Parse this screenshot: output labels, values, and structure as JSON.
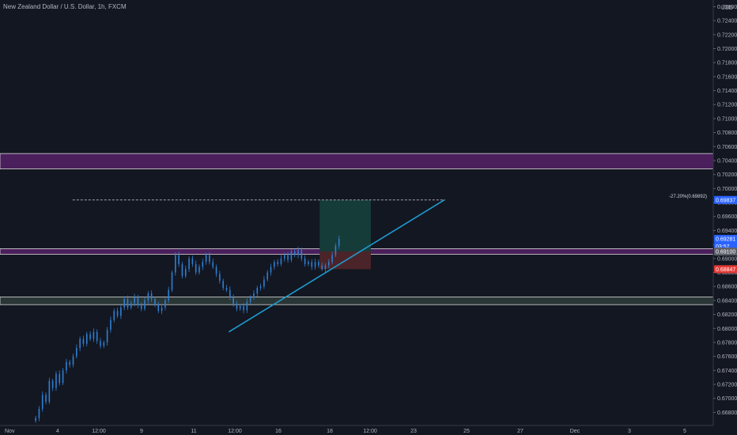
{
  "header": {
    "title": "New Zealand Dollar / U.S. Dollar, 1h, FXCM",
    "currency": "USD"
  },
  "colors": {
    "background": "#131722",
    "candle": "#2f7fd2",
    "trendline": "#1e9bcf",
    "zone_purple": "#4a1f5c",
    "zone_grey": "#2a3636",
    "target_zone": "#163c3a",
    "stop_zone": "#4b2429",
    "badge_blue": "#2962ff",
    "badge_red": "#e53935",
    "badge_grey": "#5d606b"
  },
  "chart_data": {
    "type": "candlestick",
    "ylim": [
      0.6668,
      0.7265
    ],
    "y_ticks": [
      "0.66800",
      "0.67000",
      "0.67200",
      "0.67400",
      "0.67600",
      "0.67800",
      "0.68000",
      "0.68200",
      "0.68400",
      "0.68600",
      "0.68800",
      "0.69000",
      "0.69200",
      "0.69400",
      "0.69600",
      "0.69800",
      "0.70000",
      "0.70200",
      "0.70400",
      "0.70600",
      "0.70800",
      "0.71000",
      "0.71200",
      "0.71400",
      "0.71600",
      "0.71800",
      "0.72000",
      "0.72200",
      "0.72400",
      "0.72600"
    ],
    "x_ticks": [
      "Nov",
      "4",
      "12:00",
      "9",
      "11",
      "12:00",
      "16",
      "18",
      "12:00",
      "23",
      "25",
      "27",
      "Dec",
      "3",
      "5",
      "7"
    ],
    "price_series": [
      0.6672,
      0.6685,
      0.6705,
      0.6695,
      0.6725,
      0.6715,
      0.6735,
      0.6722,
      0.674,
      0.6752,
      0.6748,
      0.676,
      0.6772,
      0.6785,
      0.6778,
      0.6792,
      0.6785,
      0.6795,
      0.6782,
      0.6775,
      0.678,
      0.6798,
      0.6812,
      0.6825,
      0.6818,
      0.683,
      0.6842,
      0.683,
      0.6836,
      0.6845,
      0.6833,
      0.6828,
      0.684,
      0.685,
      0.6842,
      0.6834,
      0.6825,
      0.683,
      0.684,
      0.6855,
      0.688,
      0.6905,
      0.6892,
      0.6875,
      0.6885,
      0.69,
      0.6892,
      0.688,
      0.6888,
      0.6895,
      0.6905,
      0.6895,
      0.6888,
      0.6878,
      0.6868,
      0.6858,
      0.6855,
      0.6845,
      0.6835,
      0.6828,
      0.6832,
      0.6826,
      0.6838,
      0.6844,
      0.685,
      0.6858,
      0.686,
      0.687,
      0.688,
      0.6888,
      0.6895,
      0.6892,
      0.69,
      0.6905,
      0.6898,
      0.691,
      0.6905,
      0.6912,
      0.69,
      0.6892,
      0.6895,
      0.6888,
      0.6895,
      0.689,
      0.6885,
      0.689,
      0.6895,
      0.6905,
      0.6918,
      0.6928
    ],
    "levels": {
      "current_price": "0.69281",
      "countdown": "03:57",
      "support_line": "0.69100",
      "stop_loss": "0.68847",
      "target": "0.69837",
      "target_annotation": "-27.20%(0.69892)"
    },
    "zones": [
      {
        "name": "upper-purple-zone",
        "from": 0.7028,
        "to": 0.705
      },
      {
        "name": "middle-purple-zone",
        "from": 0.6906,
        "to": 0.6914
      },
      {
        "name": "lower-grey-zone",
        "from": 0.6834,
        "to": 0.6845
      }
    ],
    "position": {
      "entry": 0.691,
      "target": 0.69837,
      "stop": 0.68847
    },
    "trendline": {
      "from": {
        "bar": 50,
        "price": 0.6795
      },
      "to": {
        "bar": 112,
        "price": 0.6984
      }
    },
    "target_dashed_line": {
      "from_bar": 7,
      "to_bar": 112,
      "price": 0.69837
    },
    "grid": false,
    "legend": "none"
  }
}
